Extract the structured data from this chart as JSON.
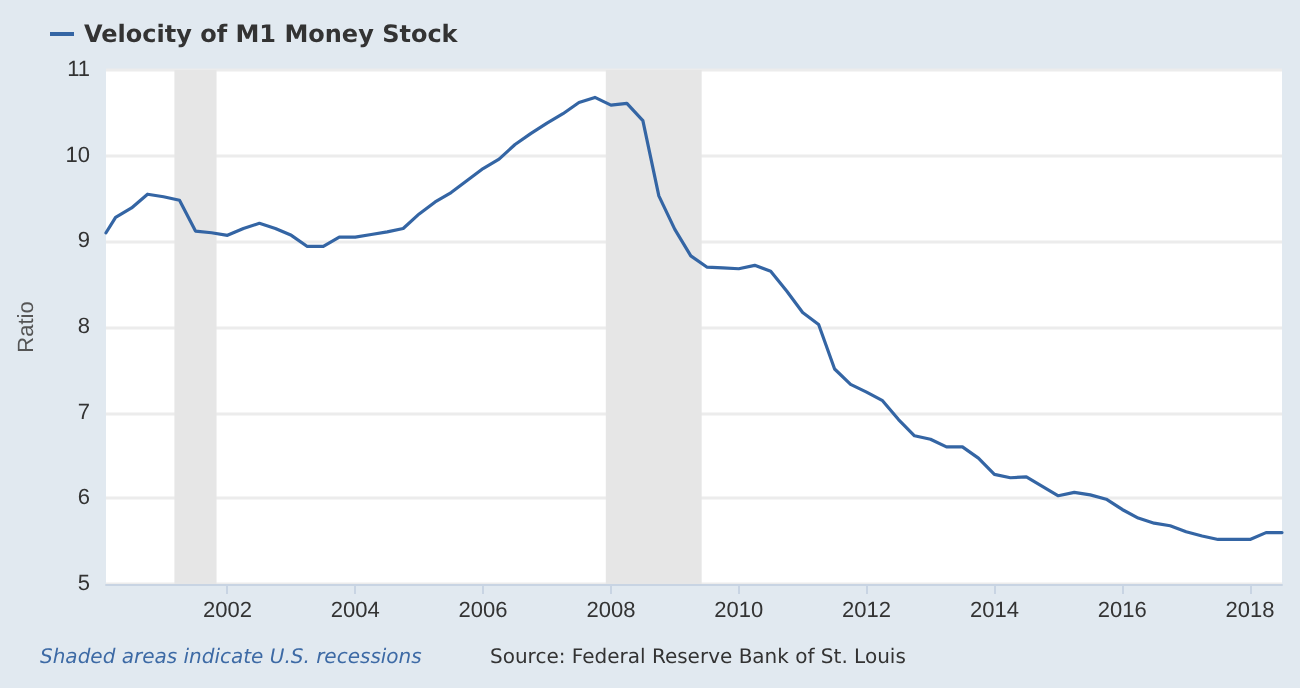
{
  "chart_data": {
    "type": "line",
    "ylabel": "Ratio",
    "legend": "top left",
    "grid": "y",
    "marker": "none",
    "line_style": "solid",
    "xlim": [
      2000.1,
      2018.5
    ],
    "xticks": [
      2002,
      2004,
      2006,
      2008,
      2010,
      2012,
      2014,
      2016,
      2018
    ],
    "ylim": [
      5,
      11
    ],
    "yticks": [
      5,
      6,
      7,
      8,
      9,
      10,
      11
    ],
    "x": [
      2000.1,
      2000.25,
      2000.5,
      2000.75,
      2001,
      2001.25,
      2001.5,
      2001.75,
      2002,
      2002.25,
      2002.5,
      2002.75,
      2003,
      2003.25,
      2003.5,
      2003.75,
      2004,
      2004.25,
      2004.5,
      2004.75,
      2005,
      2005.25,
      2005.5,
      2005.75,
      2006,
      2006.25,
      2006.5,
      2006.75,
      2007,
      2007.25,
      2007.5,
      2007.75,
      2008,
      2008.25,
      2008.5,
      2008.75,
      2009,
      2009.25,
      2009.5,
      2009.75,
      2010,
      2010.25,
      2010.5,
      2010.75,
      2011,
      2011.25,
      2011.5,
      2011.75,
      2012,
      2012.25,
      2012.5,
      2012.75,
      2013,
      2013.25,
      2013.5,
      2013.75,
      2014,
      2014.25,
      2014.5,
      2014.75,
      2015,
      2015.25,
      2015.5,
      2015.75,
      2016,
      2016.25,
      2016.5,
      2016.75,
      2017,
      2017.25,
      2017.5,
      2017.75,
      2018,
      2018.25,
      2018.5
    ],
    "series": [
      {
        "name": "Velocity of M1 Money Stock",
        "color": "#3465a4",
        "values": [
          9.1,
          9.28,
          9.39,
          9.55,
          9.52,
          9.48,
          9.12,
          9.1,
          9.07,
          9.15,
          9.21,
          9.15,
          9.07,
          8.94,
          8.94,
          9.05,
          9.05,
          9.08,
          9.11,
          9.15,
          9.32,
          9.46,
          9.57,
          9.71,
          9.85,
          9.96,
          10.13,
          10.26,
          10.38,
          10.49,
          10.62,
          10.68,
          10.59,
          10.61,
          10.41,
          9.53,
          9.14,
          8.83,
          8.7,
          8.69,
          8.68,
          8.72,
          8.65,
          8.42,
          8.17,
          8.03,
          7.51,
          7.33,
          7.24,
          7.14,
          6.92,
          6.73,
          6.69,
          6.6,
          6.6,
          6.47,
          6.28,
          6.24,
          6.25,
          6.14,
          6.03,
          6.07,
          6.04,
          5.99,
          5.87,
          5.77,
          5.71,
          5.68,
          5.61,
          5.56,
          5.52,
          5.52,
          5.52,
          5.6,
          5.6
        ]
      }
    ],
    "bands": [
      {
        "axis": "x",
        "from": 2001.17,
        "to": 2001.83,
        "color": "#e6e6e6"
      },
      {
        "axis": "x",
        "from": 2007.92,
        "to": 2009.42,
        "color": "#e6e6e6"
      }
    ],
    "annotations": [
      "Shaded areas indicate U.S. recessions",
      "Source: Federal Reserve Bank of St. Louis"
    ]
  }
}
